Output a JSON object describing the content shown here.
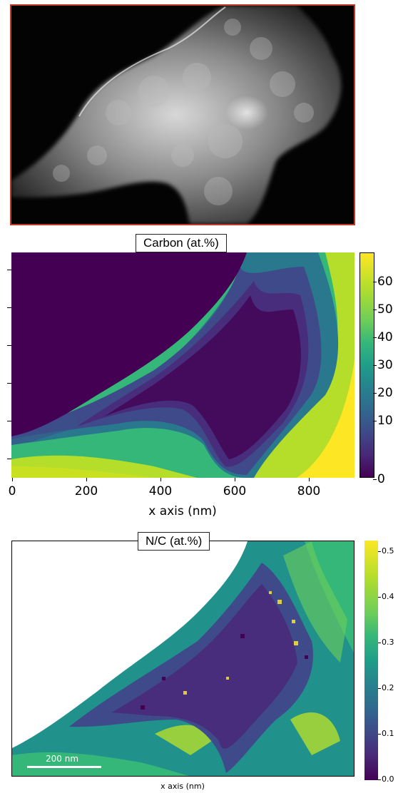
{
  "carbon_panel": {
    "title": "Carbon (at.%)",
    "x_label": "x axis (nm)",
    "x_ticks": [
      "0",
      "200",
      "400",
      "600",
      "800"
    ],
    "colorbar_ticks": [
      "60",
      "50",
      "40",
      "30",
      "20",
      "10",
      "0"
    ],
    "colormap": "viridis"
  },
  "nc_panel": {
    "title": "N/C (at.%)",
    "x_label": "x axis (nm)",
    "colorbar_ticks": [
      "0.5",
      "0.4",
      "0.3",
      "0.2",
      "0.1",
      "0.0"
    ],
    "scale_bar": "200 nm",
    "colormap": "viridis"
  },
  "colors": {
    "tem_border": "#c0392b",
    "viridis_low": "#440154",
    "viridis_mid": "#21918c",
    "viridis_high": "#fde725"
  }
}
